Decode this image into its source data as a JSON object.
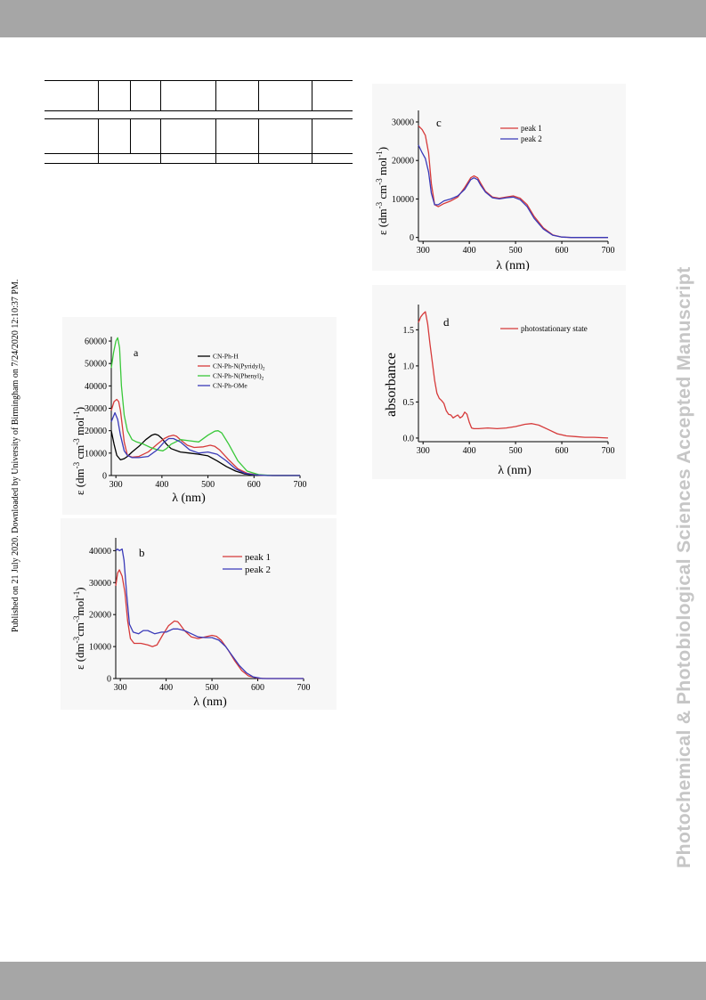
{
  "side_note": "Published on 21 July 2020. Downloaded by University of Birmingham on 7/24/2020 12:10:37 PM.",
  "watermark": "Photochemical & Photobiological Sciences Accepted Manuscript",
  "panels": {
    "a": {
      "letter": "a",
      "xlabel": "λ (nm)",
      "ylabel_main": "ε (dm",
      "ylabel_sup1": "-3",
      "ylabel_mid": " cm",
      "ylabel_sup2": "-3",
      "ylabel_mid2": " mol",
      "ylabel_sup3": "-1",
      "ylabel_end": ")"
    },
    "b": {
      "letter": "b",
      "xlabel": "λ (nm)",
      "ylabel_main": "ε (dm",
      "ylabel_sup1": "-3",
      "ylabel_mid": "cm",
      "ylabel_sup2": "-3",
      "ylabel_mid2": "mol",
      "ylabel_sup3": "-1",
      "ylabel_end": ")"
    },
    "c": {
      "letter": "c",
      "xlabel": "λ (nm)",
      "ylabel_main": "ε (dm",
      "ylabel_sup1": "-3",
      "ylabel_mid": " cm",
      "ylabel_sup2": "-3",
      "ylabel_mid2": " mol",
      "ylabel_sup3": "-1",
      "ylabel_end": ")"
    },
    "d": {
      "letter": "d",
      "xlabel": "λ  (nm)",
      "ylabel": "absorbance"
    }
  },
  "chart_data": [
    {
      "id": "a",
      "type": "line",
      "title": "",
      "xlabel": "λ (nm)",
      "ylabel": "ε (dm-3 cm-3 mol-1)",
      "xlim": [
        290,
        700
      ],
      "ylim": [
        0,
        62000
      ],
      "xticks": [
        "300",
        "400",
        "500",
        "600",
        "700"
      ],
      "yticks": [
        "0",
        "10000",
        "20000",
        "30000",
        "40000",
        "50000",
        "60000"
      ],
      "legend_position": "top-right",
      "legend_entries": [
        {
          "base": "CN-Ph-H",
          "sub": ""
        },
        {
          "base": "CN-Ph-N(Pyridyl)",
          "sub": "2"
        },
        {
          "base": "CN-Ph-N(Phenyl)",
          "sub": "2"
        },
        {
          "base": "CN-Ph-OMe",
          "sub": ""
        }
      ],
      "series": [
        {
          "name": "CN-Ph-H",
          "color": "#000000",
          "x": [
            290,
            296,
            302,
            310,
            318,
            325,
            335,
            350,
            365,
            378,
            385,
            392,
            400,
            410,
            420,
            440,
            460,
            480,
            500,
            520,
            540,
            560,
            580,
            600,
            620,
            650,
            700
          ],
          "y": [
            20000,
            14000,
            9000,
            7000,
            7500,
            8500,
            10500,
            13000,
            16000,
            18000,
            18500,
            18000,
            16500,
            14000,
            12000,
            10500,
            10000,
            9500,
            8800,
            6500,
            4000,
            2000,
            700,
            200,
            50,
            0,
            0
          ]
        },
        {
          "name": "CN-Ph-N(Pyridyl)2",
          "color": "#d63a3a",
          "x": [
            290,
            296,
            302,
            306,
            310,
            318,
            325,
            335,
            350,
            370,
            390,
            405,
            415,
            425,
            432,
            440,
            455,
            470,
            490,
            505,
            515,
            525,
            545,
            565,
            585,
            610,
            640,
            700
          ],
          "y": [
            29000,
            33000,
            34000,
            33000,
            29000,
            15000,
            9000,
            8200,
            8500,
            10500,
            14000,
            16500,
            17500,
            18000,
            17500,
            16000,
            13500,
            12500,
            12800,
            13500,
            13000,
            11500,
            7000,
            3000,
            1000,
            200,
            0,
            0
          ]
        },
        {
          "name": "CN-Ph-N(Phenyl)2",
          "color": "#39c839",
          "x": [
            290,
            295,
            300,
            304,
            308,
            312,
            318,
            325,
            335,
            345,
            360,
            375,
            390,
            402,
            410,
            420,
            440,
            460,
            480,
            500,
            515,
            522,
            530,
            545,
            565,
            585,
            610,
            640,
            700
          ],
          "y": [
            48000,
            55000,
            60000,
            61500,
            57000,
            40000,
            27000,
            20000,
            16000,
            15000,
            14000,
            12500,
            11500,
            11000,
            12000,
            14000,
            16000,
            15500,
            15000,
            18000,
            19800,
            20000,
            19000,
            14000,
            6500,
            2000,
            400,
            0,
            0
          ]
        },
        {
          "name": "CN-Ph-OMe",
          "color": "#3a3ab8",
          "x": [
            290,
            298,
            304,
            310,
            318,
            325,
            335,
            350,
            370,
            390,
            405,
            415,
            425,
            440,
            460,
            480,
            500,
            520,
            540,
            560,
            580,
            600,
            630,
            700
          ],
          "y": [
            24000,
            28000,
            25000,
            18000,
            11000,
            9000,
            8000,
            8000,
            8500,
            11500,
            15000,
            16500,
            16500,
            15000,
            11500,
            10000,
            10500,
            9500,
            6500,
            3000,
            1000,
            300,
            0,
            0
          ]
        }
      ]
    },
    {
      "id": "b",
      "type": "line",
      "title": "",
      "xlabel": "λ (nm)",
      "ylabel": "ε (dm-3cm-3mol-1)",
      "xlim": [
        290,
        700
      ],
      "ylim": [
        0,
        44000
      ],
      "xticks": [
        "300",
        "400",
        "500",
        "600",
        "700"
      ],
      "yticks": [
        "0",
        "10000",
        "20000",
        "30000",
        "40000"
      ],
      "legend_position": "top-right",
      "series": [
        {
          "name": "peak 1",
          "color": "#d63a3a",
          "x": [
            290,
            294,
            298,
            304,
            310,
            316,
            322,
            330,
            345,
            360,
            370,
            380,
            392,
            405,
            418,
            425,
            430,
            440,
            455,
            470,
            485,
            500,
            510,
            520,
            535,
            550,
            565,
            580,
            600,
            620,
            700
          ],
          "y": [
            29000,
            33000,
            34000,
            32000,
            27000,
            18000,
            12500,
            11000,
            11000,
            10500,
            10000,
            10500,
            13500,
            16500,
            18000,
            17800,
            17000,
            15000,
            13000,
            12500,
            13000,
            13500,
            13200,
            12000,
            9000,
            5500,
            2500,
            800,
            100,
            0,
            0
          ]
        },
        {
          "name": "peak 2",
          "color": "#3a3ab8",
          "x": [
            290,
            294,
            298,
            304,
            308,
            314,
            320,
            328,
            340,
            350,
            360,
            375,
            390,
            400,
            415,
            425,
            440,
            455,
            470,
            485,
            500,
            515,
            530,
            545,
            560,
            575,
            590,
            610,
            700
          ],
          "y": [
            40000,
            40500,
            40000,
            40500,
            37000,
            26000,
            17000,
            14500,
            14000,
            15000,
            15000,
            14000,
            14500,
            14500,
            15500,
            15500,
            15000,
            14000,
            13000,
            12800,
            12800,
            12000,
            10000,
            7000,
            4000,
            1800,
            500,
            0,
            0
          ]
        }
      ]
    },
    {
      "id": "c",
      "type": "line",
      "title": "",
      "xlabel": "λ (nm)",
      "ylabel": "ε (dm-3 cm-3 mol-1)",
      "xlim": [
        290,
        700
      ],
      "ylim": [
        -1000,
        33000
      ],
      "xticks": [
        "300",
        "400",
        "500",
        "600",
        "700"
      ],
      "yticks": [
        "0",
        "10000",
        "20000",
        "30000"
      ],
      "legend_position": "top-right",
      "series": [
        {
          "name": "peak 1",
          "color": "#d63a3a",
          "x": [
            290,
            298,
            305,
            312,
            318,
            325,
            333,
            345,
            360,
            375,
            390,
            403,
            410,
            418,
            425,
            435,
            450,
            465,
            480,
            495,
            510,
            525,
            540,
            560,
            580,
            600,
            620,
            700
          ],
          "y": [
            29000,
            28000,
            26500,
            22000,
            14000,
            8500,
            8000,
            8800,
            9500,
            10500,
            13000,
            15500,
            16000,
            15500,
            14000,
            12000,
            10500,
            10200,
            10500,
            10800,
            10200,
            8500,
            5500,
            2500,
            700,
            100,
            0,
            0
          ]
        },
        {
          "name": "peak 2",
          "color": "#3a3ab8",
          "x": [
            290,
            298,
            305,
            312,
            318,
            325,
            333,
            345,
            360,
            375,
            390,
            403,
            410,
            418,
            425,
            435,
            450,
            465,
            480,
            495,
            510,
            525,
            540,
            560,
            580,
            600,
            620,
            700
          ],
          "y": [
            24000,
            22000,
            20500,
            17000,
            11500,
            8500,
            8500,
            9500,
            10000,
            10800,
            12500,
            15000,
            15500,
            15000,
            13500,
            11800,
            10300,
            10000,
            10300,
            10500,
            9800,
            8000,
            5000,
            2200,
            600,
            100,
            0,
            0
          ]
        }
      ]
    },
    {
      "id": "d",
      "type": "line",
      "title": "",
      "xlabel": "λ  (nm)",
      "ylabel": "absorbance",
      "xlim": [
        290,
        700
      ],
      "ylim": [
        -0.05,
        1.85
      ],
      "xticks": [
        "300",
        "400",
        "500",
        "600",
        "700"
      ],
      "yticks": [
        "0.0",
        "0.5",
        "1.0",
        "1.5"
      ],
      "legend_position": "top-right",
      "series": [
        {
          "name": "photostationary state",
          "color": "#d63a3a",
          "x": [
            290,
            295,
            300,
            305,
            310,
            315,
            320,
            325,
            330,
            335,
            340,
            345,
            350,
            355,
            360,
            365,
            370,
            375,
            380,
            385,
            390,
            395,
            400,
            405,
            410,
            420,
            440,
            460,
            480,
            500,
            520,
            535,
            550,
            570,
            590,
            610,
            630,
            650,
            670,
            700
          ],
          "y": [
            1.6,
            1.68,
            1.72,
            1.75,
            1.58,
            1.3,
            1.05,
            0.8,
            0.62,
            0.55,
            0.52,
            0.48,
            0.38,
            0.33,
            0.32,
            0.28,
            0.3,
            0.32,
            0.28,
            0.3,
            0.36,
            0.33,
            0.22,
            0.14,
            0.13,
            0.13,
            0.14,
            0.13,
            0.14,
            0.16,
            0.19,
            0.2,
            0.18,
            0.12,
            0.06,
            0.03,
            0.02,
            0.01,
            0.01,
            0.0
          ]
        }
      ]
    }
  ]
}
